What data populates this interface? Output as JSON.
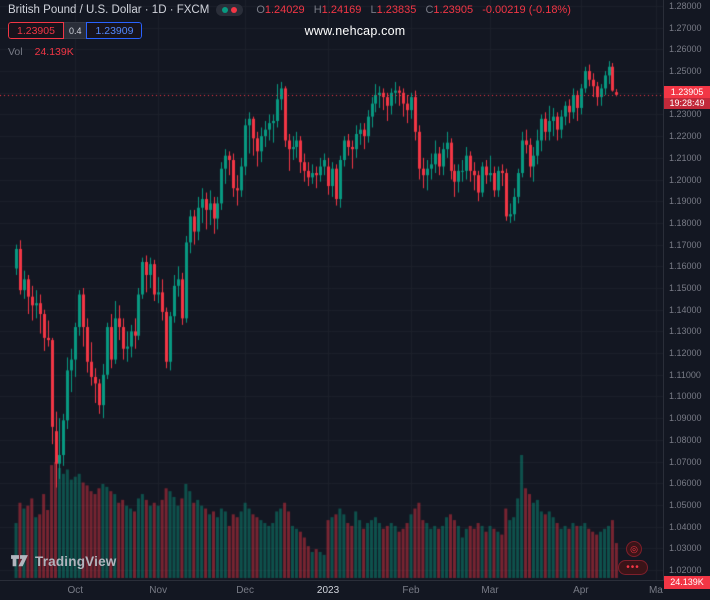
{
  "header": {
    "symbol_title": "British Pound / U.S. Dollar · 1D · FXCM",
    "ohlc": {
      "open_label": "O",
      "open": "1.24029",
      "high_label": "H",
      "high": "1.24169",
      "low_label": "L",
      "low": "1.23835",
      "close_label": "C",
      "close": "1.23905",
      "change": "-0.00219 (-0.18%)"
    },
    "sell_price": "1.23905",
    "spread": "0.4",
    "buy_price": "1.23909",
    "vol_label": "Vol",
    "vol_value": "24.139K"
  },
  "watermark": "www.nehcap.com",
  "footer": {
    "logo_text": "TradingView"
  },
  "icons": {
    "widget_a": "◎",
    "widget_b": "•••"
  },
  "price_axis": {
    "labels": [
      "1.28000",
      "1.27000",
      "1.26000",
      "1.25000",
      "1.24000",
      "1.23000",
      "1.22000",
      "1.21000",
      "1.20000",
      "1.19000",
      "1.18000",
      "1.17000",
      "1.16000",
      "1.15000",
      "1.14000",
      "1.13000",
      "1.12000",
      "1.11000",
      "1.10000",
      "1.09000",
      "1.08000",
      "1.07000",
      "1.06000",
      "1.05000",
      "1.04000",
      "1.03000",
      "1.02000"
    ],
    "current": {
      "price": "1.23905",
      "countdown": "19:28:49"
    },
    "volume_label": "24.139K"
  },
  "time_axis": {
    "ticks": [
      {
        "label": "Oct",
        "index": 15
      },
      {
        "label": "Nov",
        "index": 36
      },
      {
        "label": "Dec",
        "index": 58
      },
      {
        "label": "2023",
        "index": 79,
        "major": true
      },
      {
        "label": "Feb",
        "index": 100
      },
      {
        "label": "Mar",
        "index": 120
      },
      {
        "label": "Apr",
        "index": 143
      },
      {
        "label": "Ma",
        "index": 162
      }
    ]
  },
  "colors": {
    "background": "#131722",
    "grid": "#1c202b",
    "up": "#089981",
    "down": "#f23645",
    "accent_blue": "#2962ff",
    "text": "#d1d4dc",
    "muted": "#787b86",
    "volume_up": "rgba(8,153,129,0.45)",
    "volume_down": "rgba(242,54,69,0.45)"
  },
  "chart_data": {
    "type": "candlestick",
    "title": "British Pound / U.S. Dollar, 1D, FXCM",
    "ylabel": "Price (USD)",
    "ylim": [
      1.02,
      1.28
    ],
    "grid": true,
    "current_price": 1.23905,
    "volume_unit": "K",
    "volume_max": 85,
    "series_format": [
      "open",
      "high",
      "low",
      "close",
      "volume_k"
    ],
    "candles": [
      [
        1.159,
        1.17,
        1.156,
        1.168,
        38
      ],
      [
        1.168,
        1.172,
        1.147,
        1.149,
        52
      ],
      [
        1.149,
        1.158,
        1.145,
        1.154,
        48
      ],
      [
        1.154,
        1.156,
        1.138,
        1.146,
        50
      ],
      [
        1.146,
        1.151,
        1.135,
        1.142,
        55
      ],
      [
        1.142,
        1.149,
        1.136,
        1.143,
        42
      ],
      [
        1.143,
        1.147,
        1.129,
        1.138,
        44
      ],
      [
        1.138,
        1.14,
        1.121,
        1.127,
        58
      ],
      [
        1.127,
        1.135,
        1.123,
        1.126,
        47
      ],
      [
        1.126,
        1.127,
        1.078,
        1.086,
        78
      ],
      [
        1.084,
        1.093,
        1.058,
        1.069,
        80
      ],
      [
        1.069,
        1.09,
        1.062,
        1.073,
        76
      ],
      [
        1.073,
        1.092,
        1.068,
        1.089,
        72
      ],
      [
        1.089,
        1.118,
        1.085,
        1.112,
        75
      ],
      [
        1.112,
        1.122,
        1.102,
        1.117,
        68
      ],
      [
        1.117,
        1.134,
        1.109,
        1.132,
        70
      ],
      [
        1.132,
        1.149,
        1.128,
        1.147,
        72
      ],
      [
        1.147,
        1.15,
        1.123,
        1.132,
        66
      ],
      [
        1.132,
        1.136,
        1.111,
        1.116,
        64
      ],
      [
        1.116,
        1.125,
        1.105,
        1.109,
        60
      ],
      [
        1.109,
        1.113,
        1.097,
        1.106,
        58
      ],
      [
        1.106,
        1.108,
        1.092,
        1.096,
        62
      ],
      [
        1.096,
        1.115,
        1.09,
        1.11,
        65
      ],
      [
        1.11,
        1.134,
        1.108,
        1.132,
        63
      ],
      [
        1.132,
        1.138,
        1.113,
        1.117,
        60
      ],
      [
        1.117,
        1.144,
        1.115,
        1.136,
        58
      ],
      [
        1.136,
        1.142,
        1.126,
        1.132,
        52
      ],
      [
        1.132,
        1.136,
        1.117,
        1.122,
        54
      ],
      [
        1.122,
        1.13,
        1.116,
        1.123,
        50
      ],
      [
        1.123,
        1.133,
        1.118,
        1.13,
        48
      ],
      [
        1.13,
        1.136,
        1.122,
        1.128,
        46
      ],
      [
        1.128,
        1.15,
        1.126,
        1.147,
        55
      ],
      [
        1.147,
        1.164,
        1.145,
        1.162,
        58
      ],
      [
        1.162,
        1.165,
        1.148,
        1.156,
        54
      ],
      [
        1.156,
        1.164,
        1.15,
        1.161,
        50
      ],
      [
        1.161,
        1.163,
        1.144,
        1.147,
        52
      ],
      [
        1.147,
        1.155,
        1.143,
        1.148,
        50
      ],
      [
        1.148,
        1.154,
        1.135,
        1.139,
        54
      ],
      [
        1.139,
        1.141,
        1.113,
        1.116,
        62
      ],
      [
        1.116,
        1.139,
        1.112,
        1.137,
        60
      ],
      [
        1.137,
        1.156,
        1.134,
        1.151,
        56
      ],
      [
        1.151,
        1.16,
        1.146,
        1.154,
        50
      ],
      [
        1.154,
        1.157,
        1.133,
        1.136,
        55
      ],
      [
        1.136,
        1.174,
        1.134,
        1.171,
        65
      ],
      [
        1.171,
        1.186,
        1.166,
        1.183,
        60
      ],
      [
        1.183,
        1.186,
        1.17,
        1.176,
        52
      ],
      [
        1.176,
        1.192,
        1.172,
        1.187,
        54
      ],
      [
        1.187,
        1.196,
        1.18,
        1.191,
        50
      ],
      [
        1.191,
        1.194,
        1.177,
        1.186,
        48
      ],
      [
        1.186,
        1.195,
        1.179,
        1.189,
        44
      ],
      [
        1.189,
        1.192,
        1.175,
        1.182,
        46
      ],
      [
        1.182,
        1.192,
        1.177,
        1.189,
        42
      ],
      [
        1.189,
        1.208,
        1.186,
        1.205,
        48
      ],
      [
        1.205,
        1.214,
        1.198,
        1.211,
        46
      ],
      [
        1.211,
        1.213,
        1.202,
        1.209,
        36
      ],
      [
        1.209,
        1.212,
        1.192,
        1.196,
        44
      ],
      [
        1.196,
        1.202,
        1.188,
        1.195,
        42
      ],
      [
        1.195,
        1.21,
        1.192,
        1.206,
        46
      ],
      [
        1.206,
        1.228,
        1.202,
        1.225,
        52
      ],
      [
        1.225,
        1.231,
        1.212,
        1.228,
        48
      ],
      [
        1.228,
        1.229,
        1.211,
        1.219,
        44
      ],
      [
        1.219,
        1.222,
        1.206,
        1.213,
        42
      ],
      [
        1.213,
        1.224,
        1.208,
        1.22,
        40
      ],
      [
        1.22,
        1.227,
        1.215,
        1.223,
        38
      ],
      [
        1.223,
        1.23,
        1.218,
        1.226,
        36
      ],
      [
        1.226,
        1.23,
        1.217,
        1.227,
        38
      ],
      [
        1.227,
        1.244,
        1.224,
        1.237,
        46
      ],
      [
        1.237,
        1.245,
        1.232,
        1.242,
        48
      ],
      [
        1.242,
        1.243,
        1.215,
        1.218,
        52
      ],
      [
        1.218,
        1.221,
        1.204,
        1.214,
        46
      ],
      [
        1.214,
        1.22,
        1.209,
        1.215,
        36
      ],
      [
        1.215,
        1.222,
        1.21,
        1.218,
        34
      ],
      [
        1.218,
        1.22,
        1.203,
        1.208,
        32
      ],
      [
        1.208,
        1.212,
        1.199,
        1.204,
        28
      ],
      [
        1.204,
        1.208,
        1.197,
        1.201,
        22
      ],
      [
        1.201,
        1.207,
        1.198,
        1.203,
        18
      ],
      [
        1.203,
        1.206,
        1.196,
        1.202,
        20
      ],
      [
        1.202,
        1.21,
        1.199,
        1.206,
        18
      ],
      [
        1.206,
        1.212,
        1.202,
        1.209,
        16
      ],
      [
        1.206,
        1.21,
        1.193,
        1.197,
        40
      ],
      [
        1.197,
        1.208,
        1.192,
        1.205,
        42
      ],
      [
        1.205,
        1.207,
        1.188,
        1.191,
        44
      ],
      [
        1.191,
        1.211,
        1.187,
        1.209,
        48
      ],
      [
        1.209,
        1.22,
        1.206,
        1.218,
        44
      ],
      [
        1.218,
        1.221,
        1.211,
        1.215,
        38
      ],
      [
        1.215,
        1.218,
        1.205,
        1.214,
        36
      ],
      [
        1.214,
        1.225,
        1.21,
        1.221,
        46
      ],
      [
        1.221,
        1.226,
        1.216,
        1.223,
        40
      ],
      [
        1.223,
        1.226,
        1.214,
        1.22,
        34
      ],
      [
        1.22,
        1.232,
        1.217,
        1.229,
        38
      ],
      [
        1.229,
        1.238,
        1.224,
        1.235,
        40
      ],
      [
        1.235,
        1.244,
        1.231,
        1.239,
        42
      ],
      [
        1.239,
        1.243,
        1.233,
        1.24,
        38
      ],
      [
        1.24,
        1.242,
        1.232,
        1.238,
        34
      ],
      [
        1.238,
        1.24,
        1.227,
        1.234,
        36
      ],
      [
        1.234,
        1.242,
        1.23,
        1.24,
        38
      ],
      [
        1.24,
        1.245,
        1.235,
        1.241,
        36
      ],
      [
        1.241,
        1.243,
        1.234,
        1.24,
        32
      ],
      [
        1.24,
        1.242,
        1.229,
        1.235,
        34
      ],
      [
        1.235,
        1.239,
        1.226,
        1.232,
        38
      ],
      [
        1.232,
        1.24,
        1.228,
        1.238,
        44
      ],
      [
        1.238,
        1.241,
        1.218,
        1.222,
        48
      ],
      [
        1.222,
        1.225,
        1.2,
        1.205,
        52
      ],
      [
        1.205,
        1.21,
        1.196,
        1.202,
        40
      ],
      [
        1.202,
        1.209,
        1.195,
        1.205,
        38
      ],
      [
        1.205,
        1.212,
        1.2,
        1.207,
        34
      ],
      [
        1.207,
        1.218,
        1.203,
        1.212,
        36
      ],
      [
        1.212,
        1.215,
        1.202,
        1.206,
        34
      ],
      [
        1.206,
        1.217,
        1.202,
        1.214,
        36
      ],
      [
        1.214,
        1.222,
        1.21,
        1.217,
        42
      ],
      [
        1.217,
        1.219,
        1.2,
        1.204,
        44
      ],
      [
        1.204,
        1.207,
        1.192,
        1.199,
        40
      ],
      [
        1.199,
        1.207,
        1.194,
        1.204,
        36
      ],
      [
        1.204,
        1.209,
        1.199,
        1.204,
        28
      ],
      [
        1.204,
        1.215,
        1.2,
        1.211,
        34
      ],
      [
        1.211,
        1.213,
        1.199,
        1.204,
        36
      ],
      [
        1.204,
        1.208,
        1.195,
        1.202,
        34
      ],
      [
        1.202,
        1.204,
        1.19,
        1.194,
        38
      ],
      [
        1.194,
        1.208,
        1.192,
        1.206,
        36
      ],
      [
        1.206,
        1.209,
        1.198,
        1.202,
        32
      ],
      [
        1.202,
        1.211,
        1.199,
        1.203,
        36
      ],
      [
        1.203,
        1.206,
        1.192,
        1.195,
        34
      ],
      [
        1.195,
        1.206,
        1.192,
        1.204,
        32
      ],
      [
        1.204,
        1.207,
        1.197,
        1.203,
        30
      ],
      [
        1.203,
        1.205,
        1.181,
        1.183,
        48
      ],
      [
        1.183,
        1.189,
        1.18,
        1.184,
        40
      ],
      [
        1.184,
        1.196,
        1.181,
        1.192,
        42
      ],
      [
        1.192,
        1.205,
        1.189,
        1.203,
        55
      ],
      [
        1.203,
        1.222,
        1.201,
        1.218,
        85
      ],
      [
        1.218,
        1.223,
        1.212,
        1.216,
        62
      ],
      [
        1.216,
        1.219,
        1.201,
        1.206,
        58
      ],
      [
        1.206,
        1.215,
        1.199,
        1.211,
        52
      ],
      [
        1.211,
        1.223,
        1.207,
        1.218,
        54
      ],
      [
        1.218,
        1.23,
        1.213,
        1.228,
        46
      ],
      [
        1.228,
        1.231,
        1.218,
        1.222,
        44
      ],
      [
        1.222,
        1.234,
        1.218,
        1.227,
        46
      ],
      [
        1.227,
        1.233,
        1.22,
        1.229,
        42
      ],
      [
        1.229,
        1.231,
        1.218,
        1.223,
        38
      ],
      [
        1.223,
        1.232,
        1.219,
        1.229,
        34
      ],
      [
        1.229,
        1.236,
        1.225,
        1.234,
        36
      ],
      [
        1.234,
        1.237,
        1.226,
        1.231,
        34
      ],
      [
        1.231,
        1.242,
        1.228,
        1.239,
        38
      ],
      [
        1.239,
        1.241,
        1.227,
        1.233,
        36
      ],
      [
        1.233,
        1.244,
        1.23,
        1.242,
        36
      ],
      [
        1.242,
        1.252,
        1.24,
        1.25,
        38
      ],
      [
        1.25,
        1.253,
        1.243,
        1.246,
        34
      ],
      [
        1.246,
        1.249,
        1.238,
        1.243,
        32
      ],
      [
        1.243,
        1.245,
        1.234,
        1.238,
        30
      ],
      [
        1.238,
        1.244,
        1.234,
        1.242,
        32
      ],
      [
        1.242,
        1.25,
        1.239,
        1.248,
        34
      ],
      [
        1.248,
        1.2546,
        1.244,
        1.252,
        36
      ],
      [
        1.252,
        1.2537,
        1.2405,
        1.241,
        40
      ],
      [
        1.24029,
        1.24169,
        1.23835,
        1.23905,
        24.139
      ]
    ]
  }
}
